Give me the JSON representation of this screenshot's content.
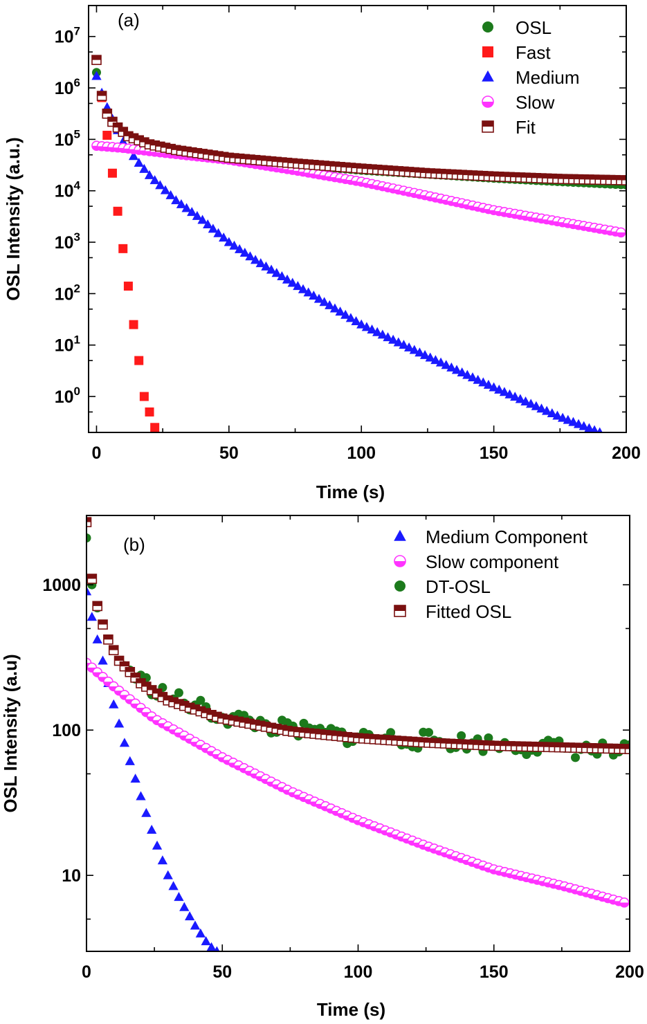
{
  "chart_data": [
    {
      "type": "scatter",
      "panel_label": "(a)",
      "xlabel": "Time (s)",
      "ylabel": "OSL Intensity (a.u.)",
      "xlim": [
        -3,
        200
      ],
      "ylim": [
        0.2,
        40000000
      ],
      "yscale": "log",
      "x_ticks": [
        0,
        50,
        100,
        150,
        200
      ],
      "y_ticks": [
        {
          "value": 1,
          "base": "10",
          "exp": "0"
        },
        {
          "value": 10,
          "base": "10",
          "exp": "1"
        },
        {
          "value": 100,
          "base": "10",
          "exp": "2"
        },
        {
          "value": 1000,
          "base": "10",
          "exp": "3"
        },
        {
          "value": 10000,
          "base": "10",
          "exp": "4"
        },
        {
          "value": 100000,
          "base": "10",
          "exp": "5"
        },
        {
          "value": 1000000,
          "base": "10",
          "exp": "6"
        },
        {
          "value": 10000000,
          "base": "10",
          "exp": "7"
        }
      ],
      "legend_position": "top-right",
      "grid": false,
      "series": [
        {
          "name": "OSL",
          "marker": "circle",
          "color": "#1c7a1c",
          "x": [
            0,
            1,
            2,
            3,
            5,
            8,
            12,
            20,
            30,
            50,
            75,
            100,
            125,
            150,
            175,
            200
          ],
          "y": [
            2000000,
            1500000,
            700000,
            400000,
            250000,
            170000,
            115000,
            78000,
            60000,
            42000,
            32000,
            25000,
            21000,
            17500,
            15000,
            13000
          ]
        },
        {
          "name": "Fast",
          "marker": "square",
          "color": "#ff1a1a",
          "x": [
            0,
            2,
            4,
            6,
            8,
            10,
            12,
            14,
            16,
            18,
            20,
            22,
            23
          ],
          "y": [
            3500000,
            650000,
            120000,
            22000,
            4000,
            750,
            140,
            25,
            5,
            1,
            0.5,
            0.25,
            0.2
          ]
        },
        {
          "name": "Medium",
          "marker": "triangle",
          "color": "#1a1aff",
          "x": [
            0,
            2,
            4,
            6,
            10,
            15,
            20,
            30,
            40,
            50,
            60,
            75,
            100,
            125,
            150,
            175,
            190
          ],
          "y": [
            1700000,
            800000,
            420000,
            250000,
            90000,
            40000,
            20000,
            6500,
            2700,
            1000,
            450,
            150,
            25,
            6,
            1.5,
            0.4,
            0.2
          ]
        },
        {
          "name": "Slow",
          "marker": "half-circle",
          "color": "#ff33ff",
          "x": [
            0,
            10,
            25,
            50,
            75,
            100,
            125,
            150,
            175,
            198
          ],
          "y": [
            75000,
            68000,
            55000,
            40000,
            25000,
            15000,
            8000,
            4200,
            2500,
            1550
          ]
        },
        {
          "name": "Fit",
          "marker": "half-square",
          "color": "#7a1010",
          "x": [
            0,
            1,
            2,
            3,
            5,
            8,
            12,
            20,
            30,
            50,
            75,
            100,
            125,
            150,
            175,
            200
          ],
          "y": [
            3500000,
            1500000,
            700000,
            400000,
            250000,
            170000,
            115000,
            80000,
            62000,
            44000,
            34000,
            27000,
            22000,
            19000,
            17000,
            16000
          ]
        }
      ]
    },
    {
      "type": "scatter",
      "panel_label": "(b)",
      "xlabel": "Time (s)",
      "ylabel": "OSL Intensity (a.u)",
      "xlim": [
        0,
        200
      ],
      "ylim": [
        3,
        3000
      ],
      "yscale": "log",
      "x_ticks": [
        0,
        50,
        100,
        150,
        200
      ],
      "y_ticks": [
        {
          "value": 10,
          "label": "10"
        },
        {
          "value": 100,
          "label": "100"
        },
        {
          "value": 1000,
          "label": "1000"
        }
      ],
      "legend_position": "top-right",
      "grid": false,
      "series": [
        {
          "name": "Medium Component",
          "marker": "triangle",
          "color": "#1a1aff",
          "x": [
            0,
            2,
            4,
            6,
            8,
            10,
            15,
            20,
            25,
            30,
            35,
            40,
            45,
            48
          ],
          "y": [
            900,
            600,
            420,
            300,
            210,
            150,
            70,
            35,
            18,
            10,
            6.5,
            4.5,
            3.3,
            3
          ]
        },
        {
          "name": "Slow component",
          "marker": "half-circle",
          "color": "#ff33ff",
          "x": [
            0,
            10,
            25,
            50,
            75,
            100,
            125,
            150,
            175,
            198
          ],
          "y": [
            290,
            200,
            120,
            65,
            38,
            24,
            16,
            11,
            8.5,
            6.5
          ]
        },
        {
          "name": "DT-OSL",
          "marker": "circle",
          "color": "#1c7a1c",
          "noise": 0.12,
          "x": [
            0,
            1,
            2,
            3,
            5,
            8,
            12,
            20,
            30,
            50,
            75,
            100,
            125,
            150,
            175,
            200
          ],
          "y": [
            2100,
            1400,
            1000,
            800,
            600,
            420,
            300,
            220,
            170,
            125,
            100,
            90,
            85,
            80,
            75,
            70
          ]
        },
        {
          "name": "Fitted OSL",
          "marker": "half-square",
          "color": "#7a1010",
          "x": [
            0,
            1,
            2,
            3,
            5,
            8,
            12,
            20,
            30,
            50,
            75,
            100,
            125,
            150,
            175,
            200
          ],
          "y": [
            2700,
            1600,
            1100,
            850,
            600,
            420,
            300,
            210,
            160,
            120,
            98,
            88,
            82,
            78,
            76,
            74
          ]
        }
      ]
    }
  ]
}
